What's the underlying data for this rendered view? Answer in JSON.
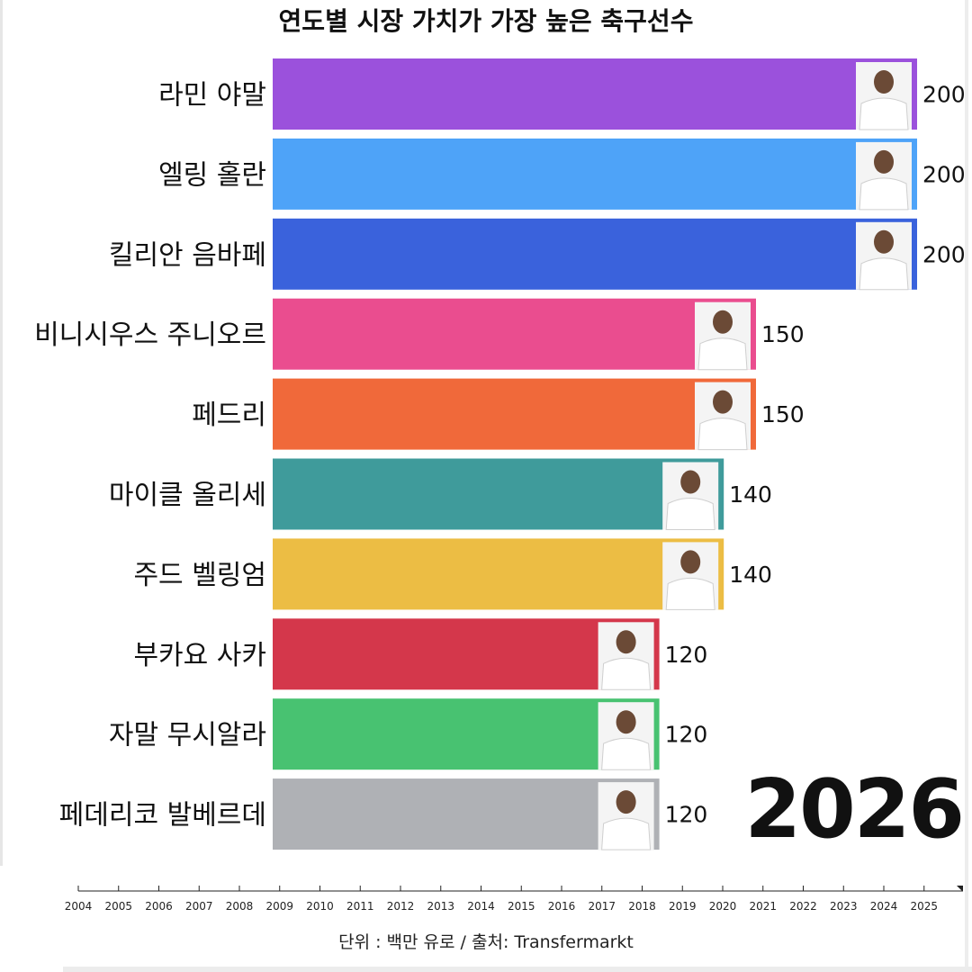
{
  "title": "연도별 시장 가치가 가장 높은 축구선수",
  "year_label": "2026",
  "source": "단위 : 백만 유로 / 출처: Transfermarkt",
  "chart_data": {
    "type": "bar",
    "orientation": "horizontal",
    "title": "연도별 시장 가치가 가장 높은 축구선수",
    "categories": [
      "라민 야말",
      "엘링 홀란",
      "킬리안 음바페",
      "비니시우스 주니오르",
      "페드리",
      "마이클 올리세",
      "주드 벨링엄",
      "부카요 사카",
      "자말 무시알라",
      "페데리코 발베르데"
    ],
    "values": [
      200,
      200,
      200,
      150,
      150,
      140,
      140,
      120,
      120,
      120
    ],
    "colors": [
      "#9b51dc",
      "#4ea3f8",
      "#3a62dc",
      "#ea4d8f",
      "#f0693a",
      "#3f9b9b",
      "#ecbd44",
      "#d4374b",
      "#48c271",
      "#afb1b5"
    ],
    "player_images": [
      "player-photo",
      "player-photo",
      "player-photo",
      "player-photo",
      "player-photo",
      "player-photo",
      "player-photo",
      "player-photo",
      "player-photo",
      "player-photo"
    ],
    "xlim": [
      0,
      200
    ],
    "grid": false,
    "legend": "none",
    "timeline": {
      "ticks": [
        "2004",
        "2005",
        "2006",
        "2007",
        "2008",
        "2009",
        "2010",
        "2011",
        "2012",
        "2013",
        "2014",
        "2015",
        "2016",
        "2017",
        "2018",
        "2019",
        "2020",
        "2021",
        "2022",
        "2023",
        "2024",
        "2025"
      ],
      "current": "2026"
    }
  }
}
